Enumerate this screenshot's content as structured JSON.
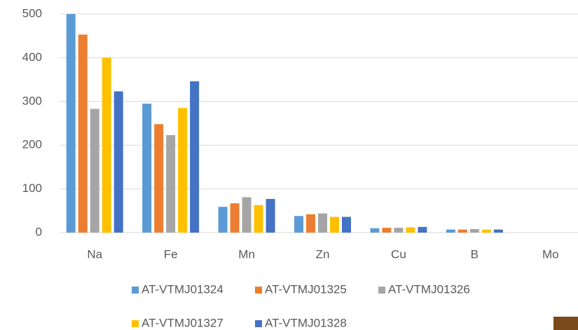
{
  "chart_data": {
    "type": "bar",
    "categories": [
      "Na",
      "Fe",
      "Mn",
      "Zn",
      "Cu",
      "B",
      "Mo"
    ],
    "series": [
      {
        "name": "AT-VTMJ01324",
        "color": "#5b9bd5",
        "values": [
          500,
          295,
          59,
          38,
          10,
          7,
          0
        ]
      },
      {
        "name": "AT-VTMJ01325",
        "color": "#ed7d31",
        "values": [
          453,
          248,
          67,
          42,
          11,
          7,
          0
        ]
      },
      {
        "name": "AT-VTMJ01326",
        "color": "#a5a5a5",
        "values": [
          283,
          223,
          81,
          44,
          11,
          8,
          0
        ]
      },
      {
        "name": "AT-VTMJ01327",
        "color": "#ffc000",
        "values": [
          400,
          285,
          63,
          36,
          12,
          7,
          0
        ]
      },
      {
        "name": "AT-VTMJ01328",
        "color": "#4472c4",
        "values": [
          323,
          346,
          77,
          36,
          13,
          7,
          0
        ]
      }
    ],
    "ylim": [
      0,
      500
    ],
    "yticks": [
      0,
      100,
      200,
      300,
      400,
      500
    ],
    "grid": true
  }
}
